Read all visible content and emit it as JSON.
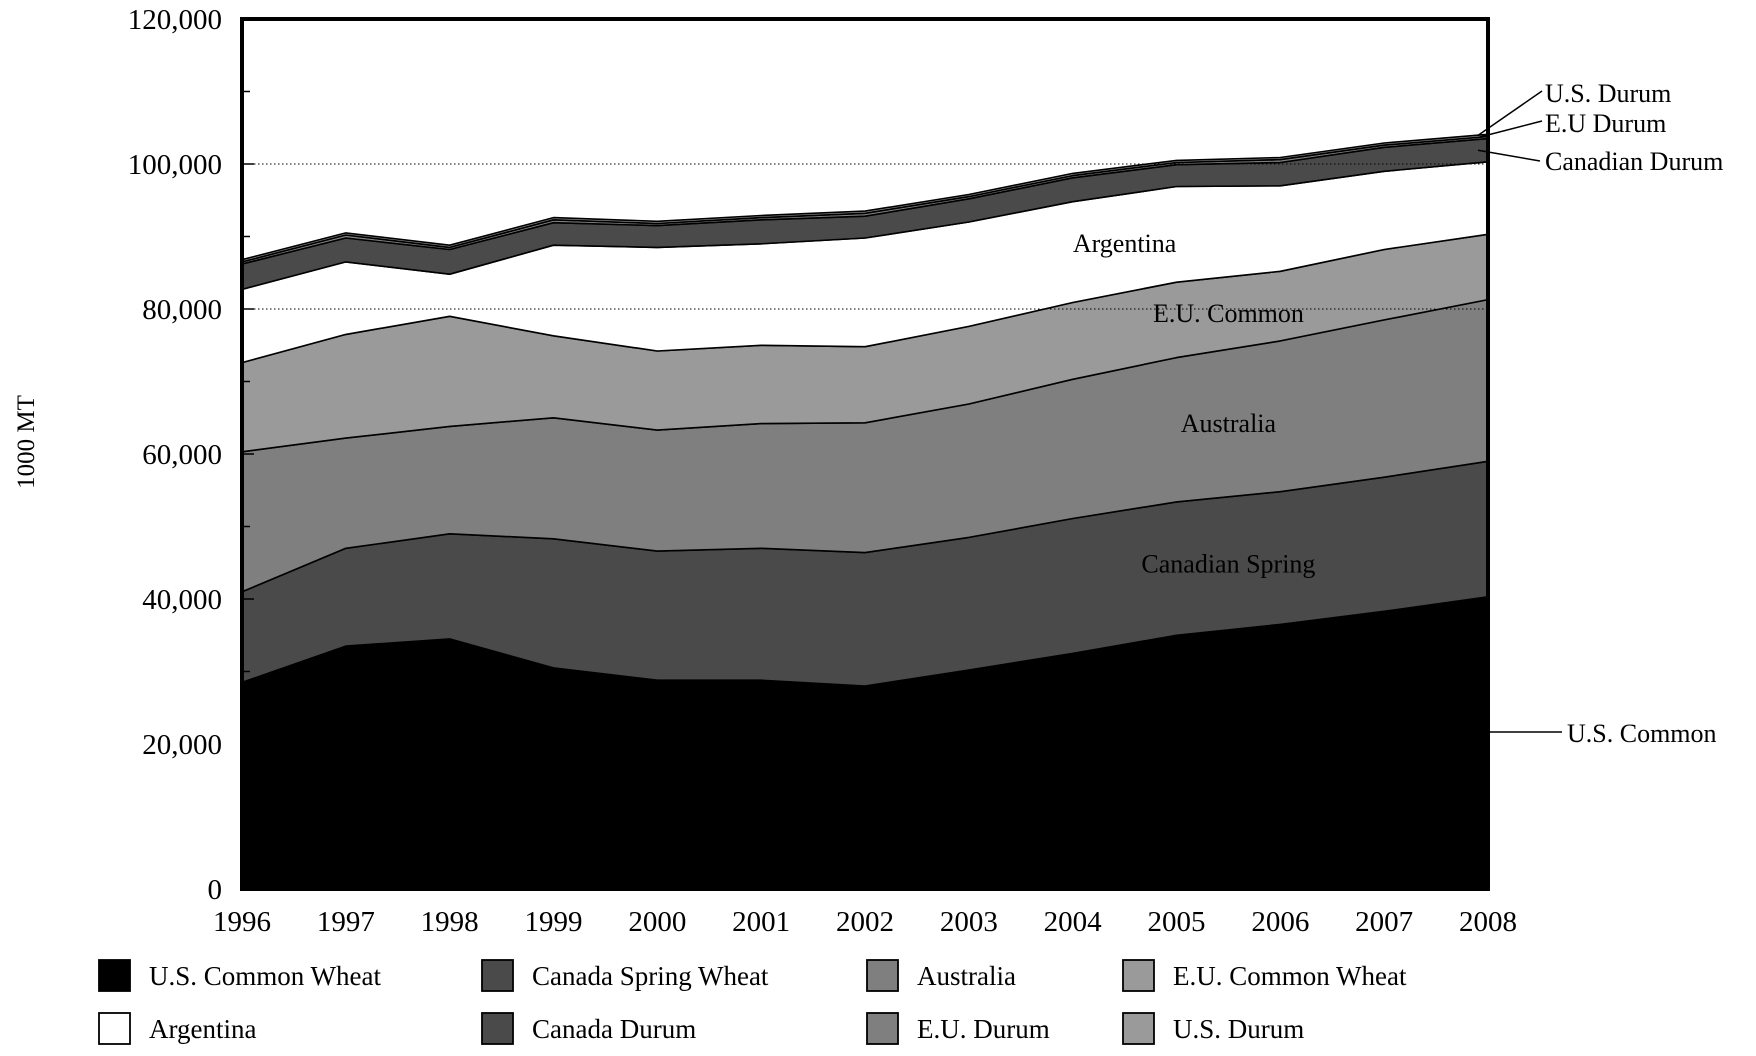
{
  "chart_data": {
    "type": "area",
    "stacked": true,
    "title": "",
    "xlabel": "",
    "ylabel": "1000 MT",
    "x": [
      "1996",
      "1997",
      "1998",
      "1999",
      "2000",
      "2001",
      "2002",
      "2003",
      "2004",
      "2005",
      "2006",
      "2007",
      "2008"
    ],
    "ylim": [
      0,
      120000
    ],
    "yticks": [
      0,
      20000,
      40000,
      60000,
      80000,
      100000,
      120000
    ],
    "ytick_labels": [
      "0",
      "20,000",
      "40,000",
      "60,000",
      "80,000",
      "100,000",
      "120,000"
    ],
    "gridlines_at": [
      80000,
      100000
    ],
    "series": [
      {
        "name": "U.S. Common Wheat",
        "color": "#000000",
        "values": [
          28500,
          33500,
          34500,
          30500,
          28800,
          28800,
          28000,
          30200,
          32500,
          35000,
          36500,
          38300,
          40300
        ]
      },
      {
        "name": "Canada Spring Wheat",
        "color": "#4a4a4a",
        "values": [
          12500,
          13500,
          14500,
          17800,
          17800,
          18200,
          18400,
          18300,
          18600,
          18400,
          18300,
          18500,
          18700
        ]
      },
      {
        "name": "Australia",
        "color": "#7f7f7f",
        "values": [
          19300,
          15200,
          14800,
          16700,
          16700,
          17200,
          17900,
          18400,
          19200,
          19900,
          20800,
          21700,
          22300
        ]
      },
      {
        "name": "E.U. Common Wheat",
        "color": "#9a9a9a",
        "values": [
          12300,
          14300,
          15200,
          11300,
          10900,
          10800,
          10500,
          10700,
          10600,
          10400,
          9600,
          9700,
          9000
        ]
      },
      {
        "name": "Argentina",
        "color": "#ffffff",
        "values": [
          10100,
          10000,
          5800,
          12500,
          14300,
          14000,
          15000,
          14400,
          13900,
          13200,
          11800,
          10800,
          10000
        ]
      },
      {
        "name": "Canada Durum",
        "color": "#4a4a4a",
        "values": [
          3500,
          3300,
          3400,
          3100,
          3000,
          3300,
          3000,
          3200,
          3300,
          3000,
          3200,
          3300,
          3200
        ]
      },
      {
        "name": "E.U. Durum",
        "color": "#7f7f7f",
        "values": [
          300,
          400,
          300,
          400,
          300,
          300,
          400,
          300,
          300,
          300,
          400,
          300,
          300
        ]
      },
      {
        "name": "U.S. Durum",
        "color": "#9a9a9a",
        "values": [
          300,
          300,
          300,
          300,
          300,
          300,
          300,
          300,
          300,
          300,
          300,
          300,
          300
        ]
      }
    ],
    "area_labels": [
      "Argentina",
      "E.U. Common",
      "Australia",
      "Canadian Spring"
    ],
    "callouts": [
      "U.S. Durum",
      "E.U Durum",
      "Canadian Durum",
      "U.S. Common"
    ],
    "legend": {
      "position": "bottom",
      "entries": [
        {
          "label": "U.S. Common Wheat",
          "color": "#000000"
        },
        {
          "label": "Canada Spring Wheat",
          "color": "#4a4a4a"
        },
        {
          "label": "Australia",
          "color": "#7f7f7f"
        },
        {
          "label": "E.U. Common Wheat",
          "color": "#9a9a9a"
        },
        {
          "label": "Argentina",
          "color": "#ffffff"
        },
        {
          "label": "Canada Durum",
          "color": "#4a4a4a"
        },
        {
          "label": "E.U. Durum",
          "color": "#7f7f7f"
        },
        {
          "label": "U.S. Durum",
          "color": "#9a9a9a"
        }
      ]
    }
  }
}
